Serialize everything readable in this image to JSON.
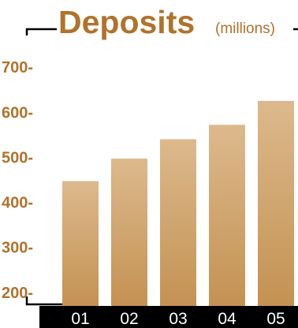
{
  "chart_data": {
    "type": "bar",
    "title": "Deposits",
    "subtitle": "(millions)",
    "categories": [
      "01",
      "02",
      "03",
      "04",
      "05"
    ],
    "values": [
      447,
      497,
      540,
      572,
      625
    ],
    "ylim": [
      170,
      730
    ],
    "yticks": [
      700,
      600,
      500,
      400,
      300,
      200
    ],
    "ytick_labels": [
      "700-",
      "600-",
      "500-",
      "400-",
      "300-",
      "200-"
    ],
    "xlabel": "",
    "ylabel": "",
    "grid": false,
    "colors": {
      "accent": "#b0732c",
      "bar_top": "#dcb98d",
      "bar_bottom": "#c49252",
      "axis_band": "#000000",
      "category_text": "#ffffff",
      "frame": "#000000"
    }
  }
}
